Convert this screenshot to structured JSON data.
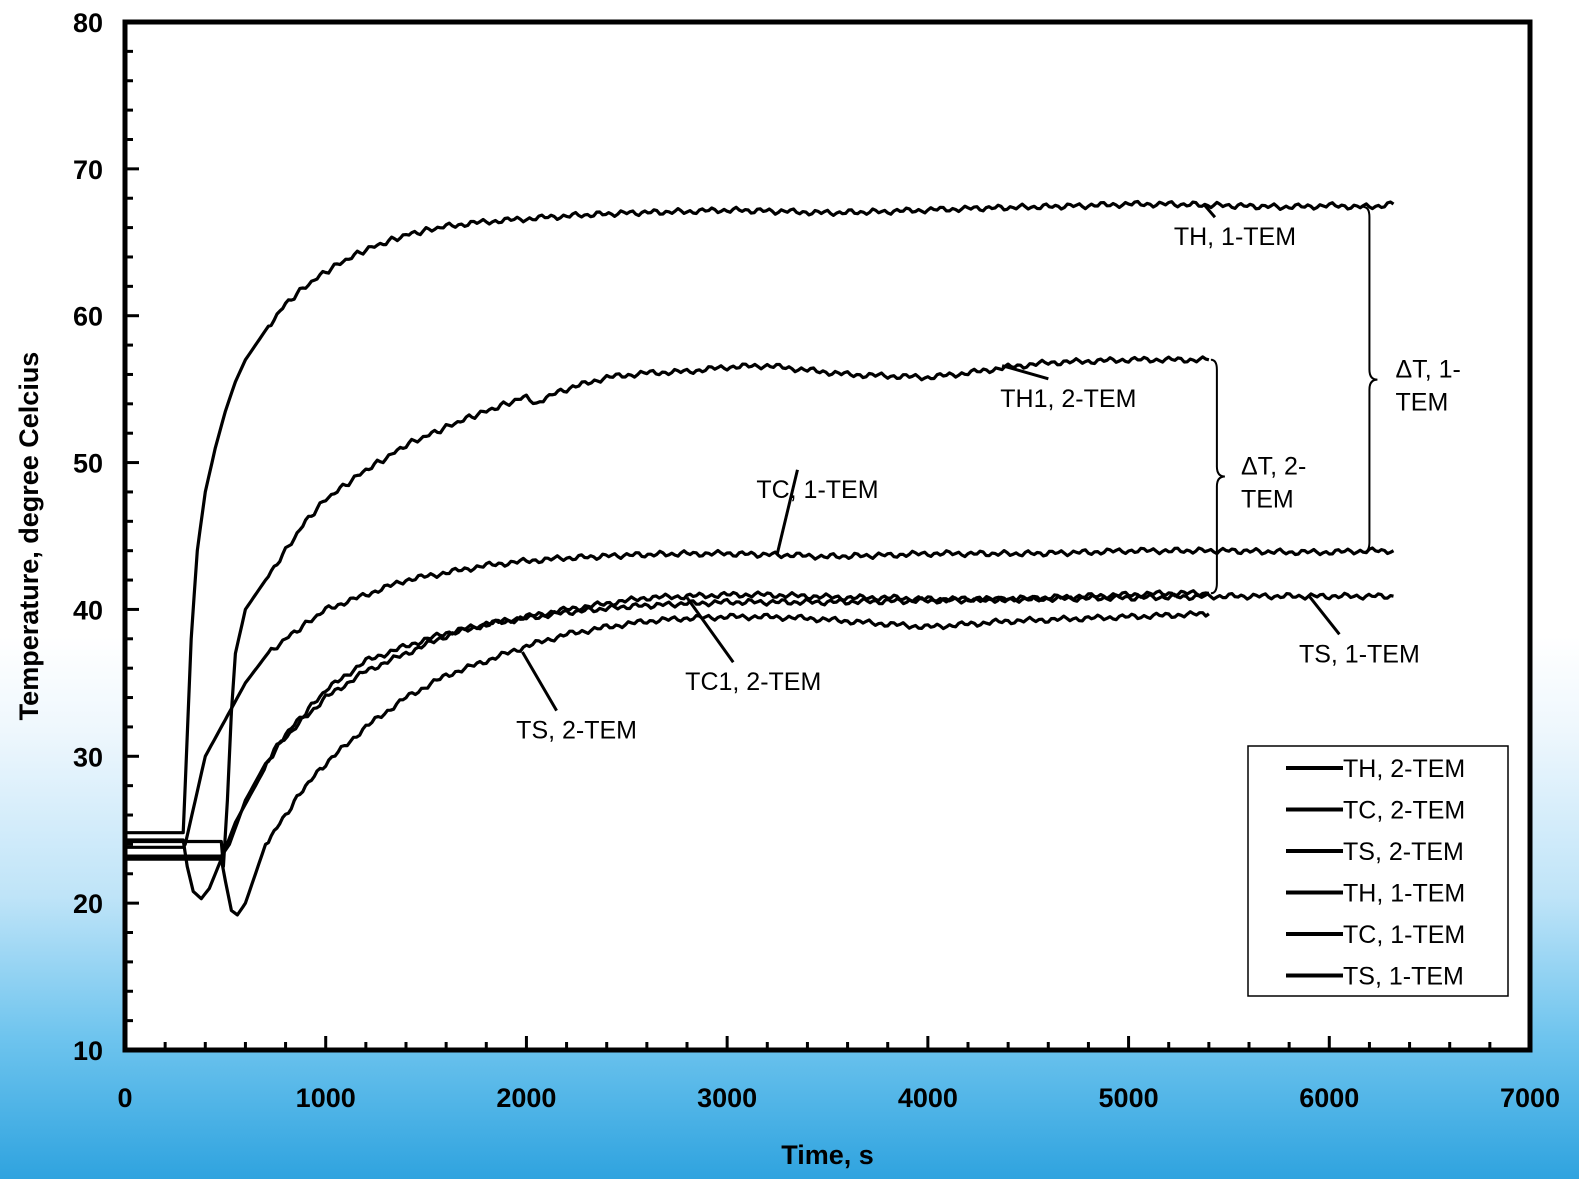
{
  "chart_data": {
    "type": "line",
    "xlabel": "Time, s",
    "ylabel": "Temperature, degree Celcius",
    "xlim": [
      0,
      7000
    ],
    "ylim": [
      10,
      80
    ],
    "x_ticks": [
      "0",
      "1000",
      "2000",
      "3000",
      "4000",
      "5000",
      "6000",
      "7000"
    ],
    "y_ticks": [
      "10",
      "20",
      "30",
      "40",
      "50",
      "60",
      "70",
      "80"
    ],
    "grid": false,
    "legend_position": "bottom-right",
    "legend": [
      "TH, 2-TEM",
      "TC, 2-TEM",
      "TS, 2-TEM",
      "TH, 1-TEM",
      "TC, 1-TEM",
      "TS, 1-TEM"
    ],
    "series": [
      {
        "name": "TH, 1-TEM",
        "color": "#000000",
        "x": [
          0,
          290,
          300,
          330,
          360,
          400,
          450,
          500,
          550,
          600,
          700,
          800,
          900,
          1000,
          1100,
          1200,
          1300,
          1400,
          1500,
          1600,
          1800,
          2000,
          2200,
          2500,
          2800,
          3000,
          3300,
          3500,
          3800,
          4000,
          4200,
          4500,
          4800,
          5000,
          5200,
          5500,
          5800,
          6000,
          6200,
          6320
        ],
        "y": [
          24.8,
          24.8,
          28,
          38,
          44,
          48,
          51,
          53.5,
          55.5,
          57,
          59,
          60.8,
          62,
          63,
          63.8,
          64.5,
          65,
          65.5,
          65.8,
          66.1,
          66.4,
          66.6,
          66.8,
          67,
          67.1,
          67.2,
          67.1,
          67,
          67.1,
          67.2,
          67.3,
          67.4,
          67.5,
          67.6,
          67.6,
          67.5,
          67.4,
          67.5,
          67.4,
          67.6
        ]
      },
      {
        "name": "TH, 2-TEM",
        "color": "#000000",
        "x": [
          0,
          480,
          490,
          510,
          530,
          550,
          600,
          700,
          800,
          900,
          1000,
          1100,
          1200,
          1300,
          1400,
          1500,
          1600,
          1700,
          1800,
          1900,
          2000,
          2050,
          2100,
          2200,
          2400,
          2600,
          2800,
          3000,
          3200,
          3400,
          3600,
          3800,
          4000,
          4200,
          4400,
          4600,
          4800,
          5000,
          5200,
          5400
        ],
        "y": [
          24.2,
          24.2,
          22.5,
          27,
          33,
          37,
          40,
          42,
          44,
          46,
          47.5,
          48.5,
          49.5,
          50.3,
          51.2,
          51.8,
          52.4,
          53,
          53.5,
          54,
          54.5,
          54,
          54.5,
          55,
          55.8,
          56.1,
          56.2,
          56.5,
          56.6,
          56.3,
          56,
          55.9,
          55.8,
          56.1,
          56.5,
          56.8,
          56.9,
          57,
          57,
          57
        ]
      },
      {
        "name": "TC, 1-TEM",
        "color": "#000000",
        "x": [
          0,
          290,
          300,
          350,
          400,
          500,
          600,
          700,
          800,
          900,
          1000,
          1200,
          1400,
          1600,
          1800,
          2000,
          2200,
          2500,
          2800,
          3000,
          3300,
          3500,
          3800,
          4000,
          4200,
          4500,
          4800,
          5000,
          5200,
          5500,
          5800,
          6000,
          6200,
          6320
        ],
        "y": [
          23.8,
          23.8,
          24,
          27,
          30,
          32.5,
          35,
          36.8,
          38,
          39,
          40,
          41,
          42,
          42.5,
          43,
          43.3,
          43.5,
          43.7,
          43.8,
          43.8,
          43.7,
          43.6,
          43.7,
          43.8,
          43.8,
          43.8,
          43.9,
          44,
          44,
          44,
          43.9,
          43.9,
          44,
          44
        ]
      },
      {
        "name": "TS, 1-TEM",
        "color": "#000000",
        "x": [
          0,
          290,
          310,
          340,
          380,
          420,
          480,
          550,
          650,
          750,
          850,
          1000,
          1200,
          1400,
          1600,
          1800,
          2000,
          2200,
          2500,
          2800,
          3000,
          3500,
          4000,
          4500,
          5000,
          5500,
          6000,
          6320
        ],
        "y": [
          24.3,
          24.3,
          22.5,
          20.8,
          20.3,
          21,
          23,
          25.5,
          28,
          30.5,
          32,
          34,
          35.8,
          37,
          38.2,
          39,
          39.4,
          39.8,
          40.2,
          40.4,
          40.5,
          40.5,
          40.6,
          40.7,
          40.8,
          40.9,
          40.9,
          40.9
        ]
      },
      {
        "name": "TC, 2-TEM",
        "color": "#000000",
        "x": [
          0,
          480,
          520,
          560,
          600,
          700,
          800,
          900,
          1000,
          1200,
          1400,
          1600,
          1800,
          2000,
          2200,
          2400,
          2600,
          2800,
          3000,
          3200,
          3400,
          3600,
          3800,
          4000,
          4200,
          4400,
          4600,
          4800,
          5000,
          5200,
          5400
        ],
        "y": [
          23.2,
          23.2,
          24,
          25.5,
          27,
          29.5,
          31.5,
          33,
          34.5,
          36.5,
          37.5,
          38.4,
          39,
          39.5,
          40,
          40.4,
          40.8,
          40.9,
          41,
          41,
          40.9,
          40.8,
          40.8,
          40.7,
          40.7,
          40.7,
          40.8,
          40.9,
          41,
          41.1,
          41.1
        ]
      },
      {
        "name": "TS, 2-TEM",
        "color": "#000000",
        "x": [
          0,
          480,
          500,
          530,
          560,
          600,
          650,
          700,
          800,
          900,
          1000,
          1200,
          1400,
          1600,
          1800,
          2000,
          2200,
          2400,
          2600,
          2800,
          3000,
          3200,
          3400,
          3600,
          3800,
          4000,
          4200,
          4400,
          4600,
          4800,
          5000,
          5200,
          5400
        ],
        "y": [
          23,
          23,
          21.5,
          19.5,
          19.2,
          20,
          22,
          24,
          26,
          28,
          29.5,
          32,
          34,
          35.5,
          36.5,
          37.5,
          38.3,
          38.8,
          39.2,
          39.4,
          39.5,
          39.5,
          39.4,
          39.2,
          39,
          38.8,
          39,
          39.2,
          39.3,
          39.4,
          39.5,
          39.6,
          39.7
        ]
      }
    ],
    "annotations": [
      {
        "text": "TH, 1-TEM",
        "x": 5530,
        "y": 64.8,
        "point_x": 5380,
        "point_y": 67.5
      },
      {
        "text": "TH1, 2-TEM",
        "x": 4700,
        "y": 53.8,
        "point_x": 4370,
        "point_y": 56.6
      },
      {
        "text": "TC, 1-TEM",
        "x": 3450,
        "y": 47.6,
        "point_x": 3250,
        "point_y": 43.8
      },
      {
        "text": "TC1, 2-TEM",
        "x": 3130,
        "y": 34.5,
        "point_x": 2800,
        "point_y": 40.8
      },
      {
        "text": "TS, 2-TEM",
        "x": 2250,
        "y": 31.2,
        "point_x": 1980,
        "point_y": 37.1
      },
      {
        "text": "TS, 1-TEM",
        "x": 6150,
        "y": 36.4,
        "point_x": 5900,
        "point_y": 40.9
      }
    ],
    "delta_annotations": [
      {
        "line1": "ΔT, 1-",
        "line2": "TEM",
        "x": 6200,
        "y_top": 67.4,
        "y_bottom": 43.9,
        "label_x": 6330
      },
      {
        "line1": "ΔT, 2-",
        "line2": "TEM",
        "x": 5440,
        "y_top": 57,
        "y_bottom": 41.1,
        "label_x": 5560
      }
    ]
  }
}
